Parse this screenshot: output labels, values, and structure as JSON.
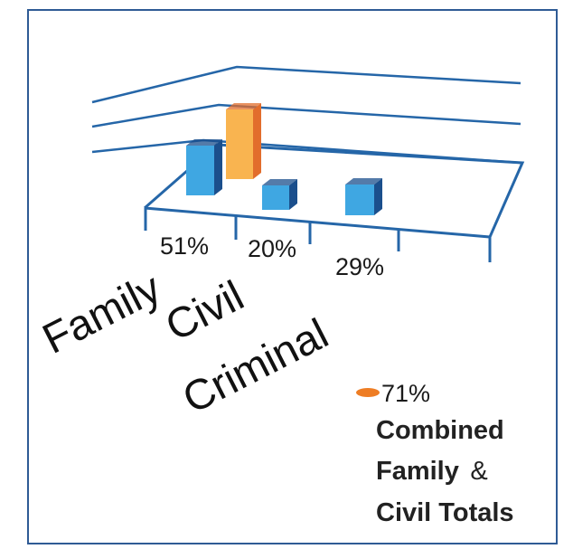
{
  "chart_data": {
    "type": "bar",
    "categories": [
      "Family",
      "Civil",
      "Criminal"
    ],
    "values": [
      51,
      20,
      29
    ],
    "value_labels": [
      "51%",
      "20%",
      "29%"
    ],
    "combined": {
      "value": 71,
      "label": "71%"
    },
    "note_lines": [
      "Combined",
      "Family",
      "&",
      "Civil Totals"
    ],
    "colors": {
      "frame": "#2f5b95",
      "axis": "#2566a8",
      "bar_front": "#3fa7e2",
      "bar_side": "#1b4f8c",
      "combined_front": "#f9b450",
      "combined_side": "#e26d2c",
      "legend_marker": "#ee7d24"
    },
    "grid": true,
    "legend": "bottom-right"
  }
}
